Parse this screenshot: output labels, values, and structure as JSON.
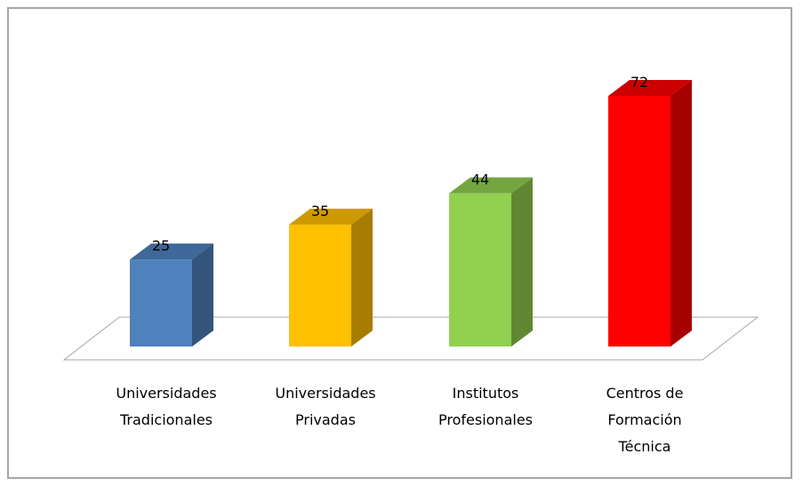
{
  "chart_data": {
    "type": "bar3d",
    "categories": [
      "Universidades Tradicionales",
      "Universidades Privadas",
      "Institutos Profesionales",
      "Centros de Formación Técnica"
    ],
    "values": [
      25,
      35,
      44,
      72
    ],
    "colors": [
      "#4f81bd",
      "#ffc000",
      "#92d050",
      "#ff0000"
    ]
  }
}
